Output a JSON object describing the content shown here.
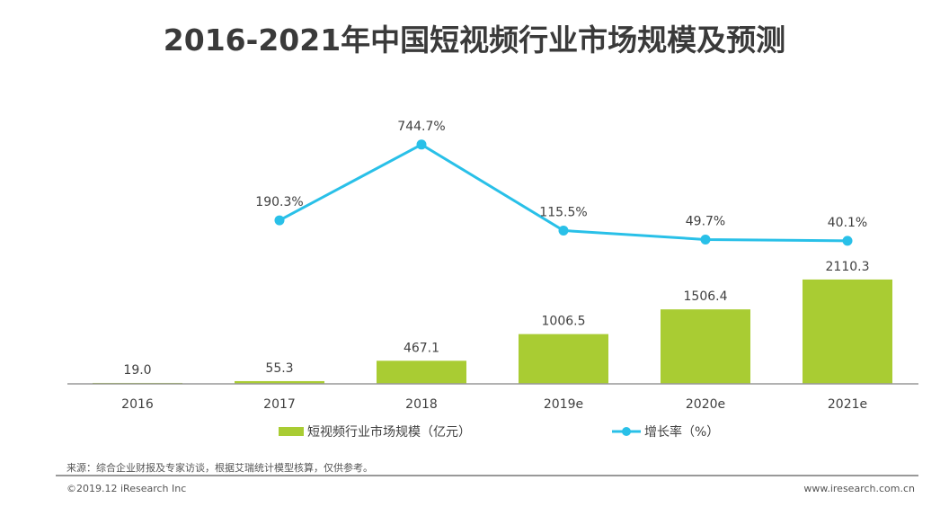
{
  "chart_data": {
    "type": "bar+line",
    "title": "2016-2021年中国短视频行业市场规模及预测",
    "categories": [
      "2016",
      "2017",
      "2018",
      "2019e",
      "2020e",
      "2021e"
    ],
    "series": [
      {
        "name": "短视频行业市场规模（亿元）",
        "type": "bar",
        "color": "#a9cc33",
        "values": [
          19.0,
          55.3,
          467.1,
          1006.5,
          1506.4,
          2110.3
        ],
        "labels": [
          "19.0",
          "55.3",
          "467.1",
          "1006.5",
          "1506.4",
          "2110.3"
        ]
      },
      {
        "name": "增长率（%）",
        "type": "line",
        "color": "#29c0e8",
        "values": [
          null,
          190.3,
          744.7,
          115.5,
          49.7,
          40.1
        ],
        "labels": [
          "",
          "190.3%",
          "744.7%",
          "115.5%",
          "49.7%",
          "40.1%"
        ]
      }
    ],
    "grid": false,
    "legend": "bottom"
  },
  "footer": {
    "source": "来源：综合企业财报及专家访谈，根据艾瑞统计模型核算，仅供参考。",
    "copyright": "©2019.12 iResearch Inc",
    "website": "www.iresearch.com.cn"
  }
}
